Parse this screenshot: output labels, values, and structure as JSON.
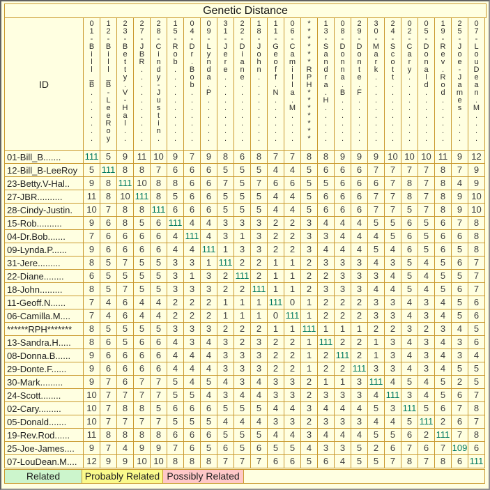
{
  "chart_data": {
    "type": "heatmap",
    "title": "Genetic Distance",
    "corner_label": "ID",
    "ids": [
      "01-Bill_B.......",
      "12-Bill_B-LeeRoy",
      "23-Betty.V-Hal..",
      "27-JBR..........",
      "28-Cindy-Justin.",
      "15-Rob..........",
      "04-Dr.Bob.......",
      "09-Lynda.P......",
      "31-Jere.........",
      "22-Diane........",
      "18-John.........",
      "11-Geoff.N......",
      "06-Camilla.M....",
      "******RPH*******",
      "13-Sandra.H.....",
      "08-Donna.B......",
      "29-Donte.F......",
      "30-Mark.........",
      "24-Scott........",
      "02-Cary.........",
      "05-Donald.......",
      "19-Rev.Rod......",
      "25-Joe-James....",
      "07-LouDean.M...."
    ],
    "matrix": [
      [
        111,
        5,
        9,
        11,
        10,
        9,
        7,
        9,
        8,
        6,
        8,
        7,
        7,
        8,
        8,
        9,
        9,
        9,
        10,
        10,
        10,
        11,
        9,
        12
      ],
      [
        5,
        111,
        8,
        8,
        7,
        6,
        6,
        6,
        5,
        5,
        5,
        4,
        4,
        5,
        6,
        6,
        6,
        7,
        7,
        7,
        7,
        8,
        7,
        9
      ],
      [
        9,
        8,
        111,
        10,
        8,
        8,
        6,
        6,
        7,
        5,
        7,
        6,
        6,
        5,
        5,
        6,
        6,
        6,
        7,
        8,
        7,
        8,
        4,
        9
      ],
      [
        11,
        8,
        10,
        111,
        8,
        5,
        6,
        6,
        5,
        5,
        5,
        4,
        4,
        5,
        6,
        6,
        6,
        7,
        7,
        8,
        7,
        8,
        9,
        10
      ],
      [
        10,
        7,
        8,
        8,
        111,
        6,
        6,
        6,
        5,
        5,
        5,
        4,
        4,
        5,
        6,
        6,
        6,
        7,
        7,
        5,
        7,
        8,
        9,
        10
      ],
      [
        9,
        6,
        8,
        5,
        6,
        111,
        4,
        4,
        3,
        3,
        3,
        2,
        2,
        3,
        4,
        4,
        4,
        5,
        5,
        6,
        5,
        6,
        7,
        8
      ],
      [
        7,
        6,
        6,
        6,
        6,
        4,
        111,
        4,
        3,
        1,
        3,
        2,
        2,
        3,
        3,
        4,
        4,
        4,
        5,
        6,
        5,
        6,
        6,
        8
      ],
      [
        9,
        6,
        6,
        6,
        6,
        4,
        4,
        111,
        1,
        3,
        3,
        2,
        2,
        3,
        4,
        4,
        4,
        5,
        4,
        6,
        5,
        6,
        5,
        8
      ],
      [
        8,
        5,
        7,
        5,
        5,
        3,
        3,
        1,
        111,
        2,
        2,
        1,
        1,
        2,
        3,
        3,
        3,
        4,
        3,
        5,
        4,
        5,
        6,
        7
      ],
      [
        6,
        5,
        5,
        5,
        5,
        3,
        1,
        3,
        2,
        111,
        2,
        1,
        1,
        2,
        2,
        3,
        3,
        3,
        4,
        5,
        4,
        5,
        5,
        7
      ],
      [
        8,
        5,
        7,
        5,
        5,
        3,
        3,
        3,
        2,
        2,
        111,
        1,
        1,
        2,
        3,
        3,
        3,
        4,
        4,
        5,
        4,
        5,
        6,
        7
      ],
      [
        7,
        4,
        6,
        4,
        4,
        2,
        2,
        2,
        1,
        1,
        1,
        111,
        0,
        1,
        2,
        2,
        2,
        3,
        3,
        4,
        3,
        4,
        5,
        6
      ],
      [
        7,
        4,
        6,
        4,
        4,
        2,
        2,
        2,
        1,
        1,
        1,
        0,
        111,
        1,
        2,
        2,
        2,
        3,
        3,
        4,
        3,
        4,
        5,
        6
      ],
      [
        8,
        5,
        5,
        5,
        5,
        3,
        3,
        3,
        2,
        2,
        2,
        1,
        1,
        111,
        1,
        1,
        1,
        2,
        2,
        3,
        2,
        3,
        4,
        5
      ],
      [
        8,
        6,
        5,
        6,
        6,
        4,
        3,
        4,
        3,
        2,
        3,
        2,
        2,
        1,
        111,
        2,
        2,
        1,
        3,
        4,
        3,
        4,
        3,
        6
      ],
      [
        9,
        6,
        6,
        6,
        6,
        4,
        4,
        4,
        3,
        3,
        3,
        2,
        2,
        1,
        2,
        111,
        2,
        1,
        3,
        4,
        3,
        4,
        3,
        4
      ],
      [
        9,
        6,
        6,
        6,
        6,
        4,
        4,
        4,
        3,
        3,
        3,
        2,
        2,
        1,
        2,
        2,
        111,
        3,
        3,
        4,
        3,
        4,
        5,
        5
      ],
      [
        9,
        7,
        6,
        7,
        7,
        5,
        4,
        5,
        4,
        3,
        4,
        3,
        3,
        2,
        1,
        1,
        3,
        111,
        4,
        5,
        4,
        5,
        2,
        5
      ],
      [
        10,
        7,
        7,
        7,
        7,
        5,
        5,
        4,
        3,
        4,
        4,
        3,
        3,
        2,
        3,
        3,
        3,
        4,
        111,
        3,
        4,
        5,
        6,
        7
      ],
      [
        10,
        7,
        8,
        8,
        5,
        6,
        6,
        6,
        5,
        5,
        5,
        4,
        4,
        3,
        4,
        4,
        4,
        5,
        3,
        111,
        5,
        6,
        7,
        8
      ],
      [
        10,
        7,
        7,
        7,
        7,
        5,
        5,
        5,
        4,
        4,
        4,
        3,
        3,
        2,
        3,
        3,
        3,
        4,
        4,
        5,
        111,
        2,
        6,
        7
      ],
      [
        11,
        8,
        8,
        8,
        8,
        6,
        6,
        6,
        5,
        5,
        5,
        4,
        4,
        3,
        4,
        4,
        4,
        5,
        5,
        6,
        2,
        111,
        7,
        8
      ],
      [
        9,
        7,
        4,
        9,
        9,
        7,
        6,
        5,
        6,
        5,
        6,
        5,
        5,
        4,
        3,
        3,
        5,
        2,
        6,
        7,
        6,
        7,
        109,
        6
      ],
      [
        12,
        9,
        9,
        10,
        10,
        8,
        8,
        8,
        7,
        7,
        7,
        6,
        6,
        5,
        6,
        4,
        5,
        5,
        7,
        8,
        7,
        8,
        6,
        111
      ]
    ],
    "legend": [
      {
        "label": "Related",
        "color_key": "related"
      },
      {
        "label": "Probably Related",
        "color_key": "probably_related"
      },
      {
        "label": "Possibly Related",
        "color_key": "possibly_related"
      }
    ],
    "thresholds": {
      "related_max": 6,
      "probably_max": 7,
      "possibly_max": 9
    },
    "colors": {
      "related": "#ccf5cc",
      "probably_related": "#fafa8c",
      "possibly_related": "#ffc8c8",
      "distant": "#ffffe1",
      "diagonal_bg": "#ffffff",
      "diagonal_text": "#00795f",
      "grid": "#c9992e"
    },
    "layout": {
      "grid": "on",
      "legend_position": "bottom",
      "row_order_matches_column_order": true
    }
  }
}
